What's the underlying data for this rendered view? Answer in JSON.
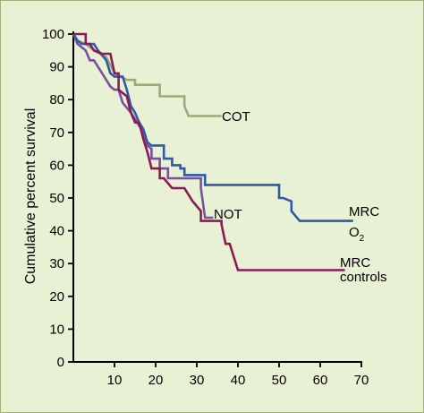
{
  "chart_data": {
    "type": "line",
    "ylabel": "Cumulative percent survival",
    "xlabel": "",
    "xlim": [
      0,
      70
    ],
    "ylim": [
      0,
      100
    ],
    "x_ticks": [
      10,
      20,
      30,
      40,
      50,
      60,
      70
    ],
    "y_ticks": [
      0,
      10,
      20,
      30,
      40,
      50,
      60,
      70,
      80,
      90,
      100
    ],
    "grid": false,
    "series": [
      {
        "name": "COT",
        "label_lines": [
          "COT"
        ],
        "color": "#9aaa78",
        "points": [
          [
            0,
            100
          ],
          [
            1,
            98
          ],
          [
            3,
            97
          ],
          [
            5,
            95
          ],
          [
            8,
            93
          ],
          [
            10,
            88
          ],
          [
            13,
            86
          ],
          [
            15,
            86
          ],
          [
            15,
            84.5
          ],
          [
            21,
            84.5
          ],
          [
            21,
            81
          ],
          [
            27,
            81
          ],
          [
            27,
            78
          ],
          [
            28,
            75
          ],
          [
            36,
            75
          ]
        ]
      },
      {
        "name": "NOT",
        "label_lines": [
          "NOT"
        ],
        "color": "#7a4fa0",
        "points": [
          [
            0,
            100
          ],
          [
            1,
            97
          ],
          [
            3,
            95
          ],
          [
            4,
            92
          ],
          [
            5,
            92
          ],
          [
            7,
            88
          ],
          [
            8,
            86
          ],
          [
            9,
            84
          ],
          [
            10,
            83
          ],
          [
            11,
            83
          ],
          [
            12,
            79
          ],
          [
            14,
            76
          ],
          [
            15,
            74
          ],
          [
            17,
            70
          ],
          [
            18,
            66
          ],
          [
            19,
            65
          ],
          [
            19,
            62
          ],
          [
            21,
            62
          ],
          [
            21,
            59
          ],
          [
            23,
            59
          ],
          [
            23,
            56
          ],
          [
            31,
            56
          ],
          [
            31,
            53
          ],
          [
            32,
            44
          ],
          [
            34,
            44
          ]
        ]
      },
      {
        "name": "MRC O2",
        "label_lines": [
          "MRC",
          "O2"
        ],
        "color": "#2f5aa8",
        "points": [
          [
            0,
            100
          ],
          [
            1,
            98
          ],
          [
            2,
            97
          ],
          [
            5,
            97
          ],
          [
            6,
            95
          ],
          [
            8,
            92
          ],
          [
            9,
            88
          ],
          [
            10,
            87
          ],
          [
            12,
            87
          ],
          [
            13,
            83
          ],
          [
            14,
            78
          ],
          [
            15,
            76
          ],
          [
            16,
            73
          ],
          [
            17,
            71
          ],
          [
            18,
            67
          ],
          [
            19,
            66
          ],
          [
            22,
            66
          ],
          [
            22,
            62
          ],
          [
            24,
            62
          ],
          [
            24,
            60
          ],
          [
            26,
            60
          ],
          [
            26,
            59
          ],
          [
            27,
            59
          ],
          [
            27,
            57
          ],
          [
            30,
            57
          ],
          [
            30,
            57
          ],
          [
            32,
            57
          ],
          [
            32,
            54
          ],
          [
            34,
            54
          ],
          [
            50,
            54
          ],
          [
            50,
            50
          ],
          [
            51,
            50
          ],
          [
            53,
            49
          ],
          [
            53,
            46
          ],
          [
            55,
            43
          ],
          [
            68,
            43
          ]
        ]
      },
      {
        "name": "MRC controls",
        "label_lines": [
          "MRC",
          "controls"
        ],
        "color": "#8c1a57",
        "points": [
          [
            0,
            100
          ],
          [
            3,
            100
          ],
          [
            3,
            97
          ],
          [
            4,
            97
          ],
          [
            5,
            95
          ],
          [
            7,
            94
          ],
          [
            9,
            94
          ],
          [
            10,
            88
          ],
          [
            11,
            88
          ],
          [
            11,
            83
          ],
          [
            13,
            81
          ],
          [
            14,
            76
          ],
          [
            15,
            73
          ],
          [
            16,
            73
          ],
          [
            17,
            68
          ],
          [
            18,
            64
          ],
          [
            19,
            59
          ],
          [
            21,
            59
          ],
          [
            21,
            56
          ],
          [
            22,
            56
          ],
          [
            24,
            53
          ],
          [
            27,
            53
          ],
          [
            29,
            49
          ],
          [
            31,
            46
          ],
          [
            31,
            43
          ],
          [
            36,
            43
          ],
          [
            36,
            42
          ],
          [
            37,
            36
          ],
          [
            38,
            36
          ],
          [
            40,
            28
          ],
          [
            66,
            28
          ]
        ]
      }
    ]
  }
}
